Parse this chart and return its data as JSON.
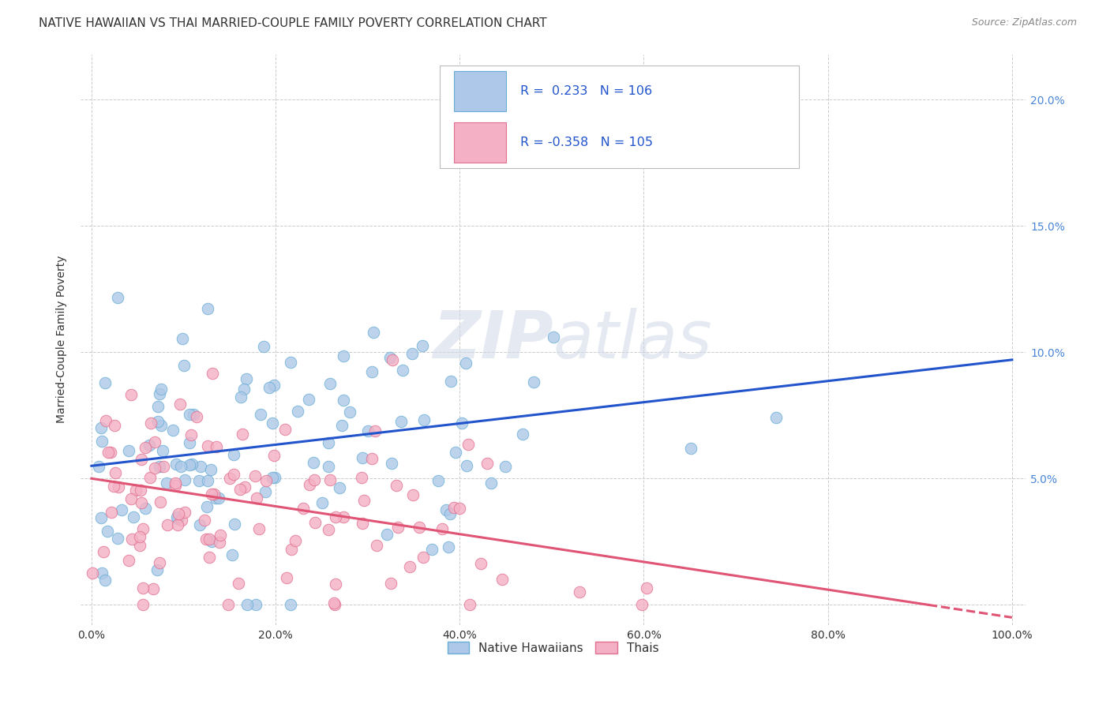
{
  "title": "NATIVE HAWAIIAN VS THAI MARRIED-COUPLE FAMILY POVERTY CORRELATION CHART",
  "source": "Source: ZipAtlas.com",
  "ylabel": "Married-Couple Family Poverty",
  "native_hawaiian_color": "#adc8e8",
  "native_hawaiian_edge": "#6aaed6",
  "thai_color": "#f4b0c4",
  "thai_edge": "#e07090",
  "trend_blue": "#2255cc",
  "trend_pink": "#e05575",
  "legend_r_blue": "0.233",
  "legend_n_blue": "106",
  "legend_r_pink": "-0.358",
  "legend_n_pink": "105",
  "background_color": "#ffffff",
  "grid_color": "#cccccc",
  "title_fontsize": 11,
  "axis_label_fontsize": 10,
  "tick_fontsize": 10,
  "right_tick_color": "#4a86d8",
  "text_color": "#333333",
  "source_color": "#888888"
}
